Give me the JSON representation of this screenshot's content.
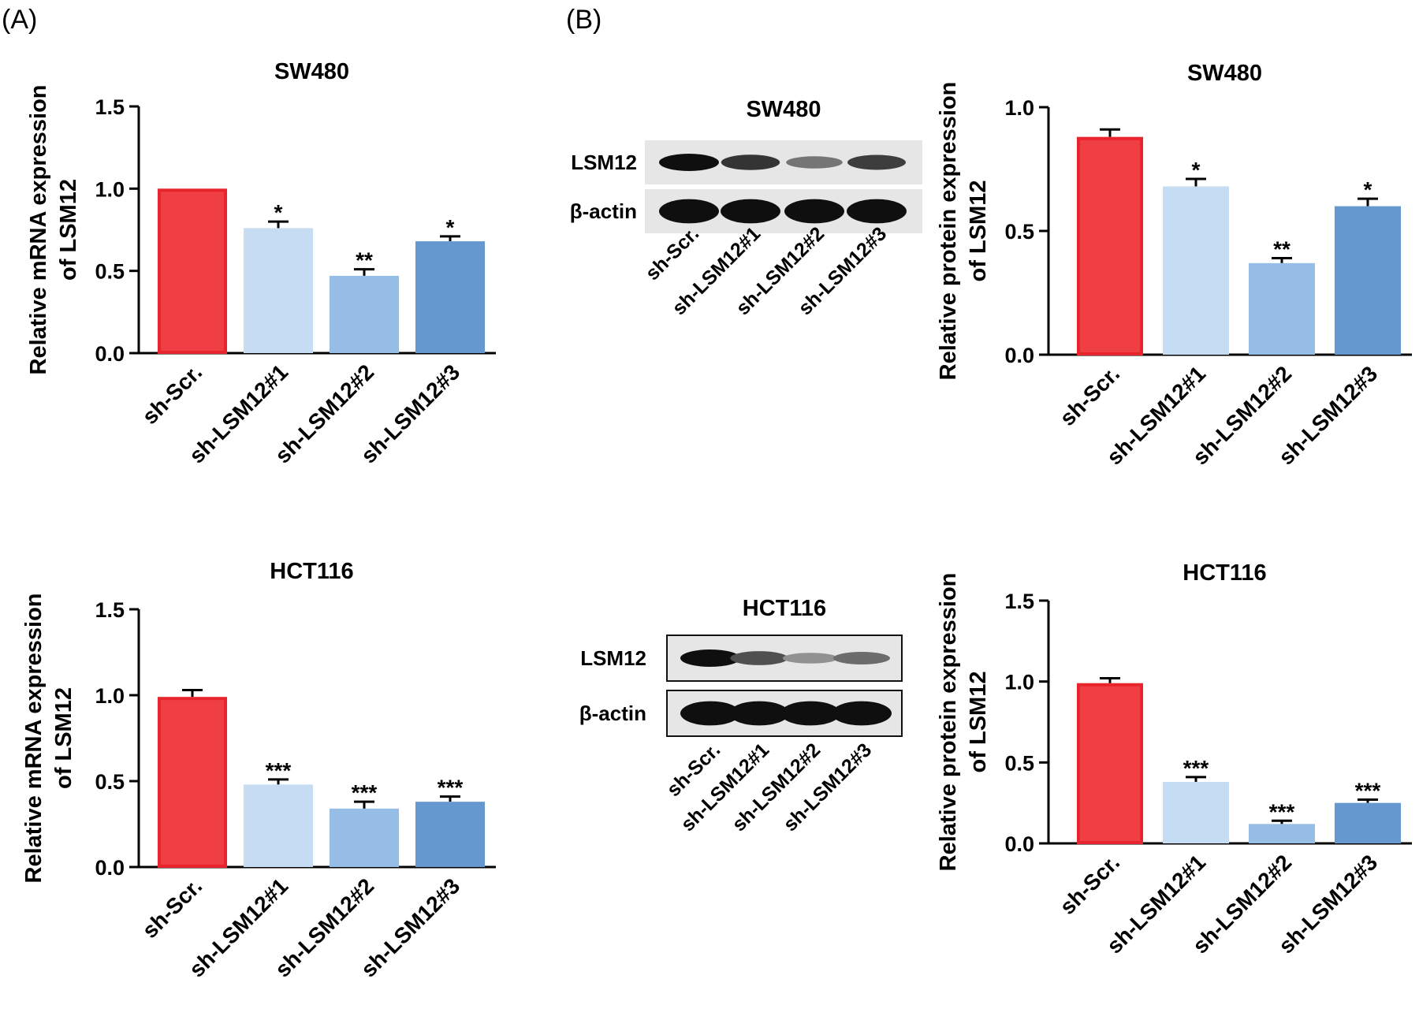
{
  "panels": {
    "a": "(A)",
    "b": "(B)"
  },
  "colors": {
    "sh_scr": "#ef3f45",
    "sh1": "#c6dcf3",
    "sh2": "#95bde6",
    "sh3": "#6698d0"
  },
  "chart_data": [
    {
      "type": "bar",
      "panel": "A",
      "title": "SW480",
      "ylabel_lines": [
        "Relative mRNA expression",
        "of LSM12"
      ],
      "xlabel": "",
      "categories": [
        "sh-Scr.",
        "sh-LSM12#1",
        "sh-LSM12#2",
        "sh-LSM12#3"
      ],
      "values": [
        1.0,
        0.76,
        0.47,
        0.68
      ],
      "errors": [
        0.0,
        0.04,
        0.04,
        0.03
      ],
      "significance": [
        "",
        "*",
        "**",
        "*"
      ],
      "ylim": [
        0,
        1.5
      ],
      "yticks": [
        "0.0",
        "0.5",
        "1.0",
        "1.5"
      ]
    },
    {
      "type": "bar",
      "panel": "B",
      "title": "SW480",
      "ylabel_lines": [
        "Relative protein expression",
        "of LSM12"
      ],
      "xlabel": "",
      "categories": [
        "sh-Scr.",
        "sh-LSM12#1",
        "sh-LSM12#2",
        "sh-LSM12#3"
      ],
      "values": [
        0.88,
        0.68,
        0.37,
        0.6
      ],
      "errors": [
        0.03,
        0.03,
        0.02,
        0.03
      ],
      "significance": [
        "",
        "*",
        "**",
        "*"
      ],
      "ylim": [
        0,
        1.0
      ],
      "yticks": [
        "0.0",
        "0.5",
        "1.0"
      ]
    },
    {
      "type": "bar",
      "panel": "A",
      "title": "HCT116",
      "ylabel_lines": [
        "Relative mRNA expression",
        "of LSM12"
      ],
      "xlabel": "",
      "categories": [
        "sh-Scr.",
        "sh-LSM12#1",
        "sh-LSM12#2",
        "sh-LSM12#3"
      ],
      "values": [
        0.99,
        0.48,
        0.34,
        0.38
      ],
      "errors": [
        0.04,
        0.03,
        0.04,
        0.03
      ],
      "significance": [
        "",
        "***",
        "***",
        "***"
      ],
      "ylim": [
        0,
        1.5
      ],
      "yticks": [
        "0.0",
        "0.5",
        "1.0",
        "1.5"
      ]
    },
    {
      "type": "bar",
      "panel": "B",
      "title": "HCT116",
      "ylabel_lines": [
        "Relative protein expression",
        "of LSM12"
      ],
      "xlabel": "",
      "categories": [
        "sh-Scr.",
        "sh-LSM12#1",
        "sh-LSM12#2",
        "sh-LSM12#3"
      ],
      "values": [
        0.99,
        0.38,
        0.12,
        0.25
      ],
      "errors": [
        0.03,
        0.03,
        0.02,
        0.02
      ],
      "significance": [
        "",
        "***",
        "***",
        "***"
      ],
      "ylim": [
        0,
        1.5
      ],
      "yticks": [
        "0.0",
        "0.5",
        "1.0",
        "1.5"
      ]
    }
  ],
  "blots": [
    {
      "title": "SW480",
      "rows": [
        "LSM12",
        "β-actin"
      ],
      "lanes": [
        "sh-Scr.",
        "sh-LSM12#1",
        "sh-LSM12#2",
        "sh-LSM12#3"
      ],
      "intensity": [
        [
          1.0,
          0.8,
          0.45,
          0.75
        ],
        [
          1.0,
          1.0,
          1.0,
          1.0
        ]
      ]
    },
    {
      "title": "HCT116",
      "rows": [
        "LSM12",
        "β-actin"
      ],
      "lanes": [
        "sh-Scr.",
        "sh-LSM12#1",
        "sh-LSM12#2",
        "sh-LSM12#3"
      ],
      "intensity": [
        [
          1.0,
          0.65,
          0.3,
          0.5
        ],
        [
          1.0,
          1.0,
          1.0,
          1.0
        ]
      ]
    }
  ]
}
